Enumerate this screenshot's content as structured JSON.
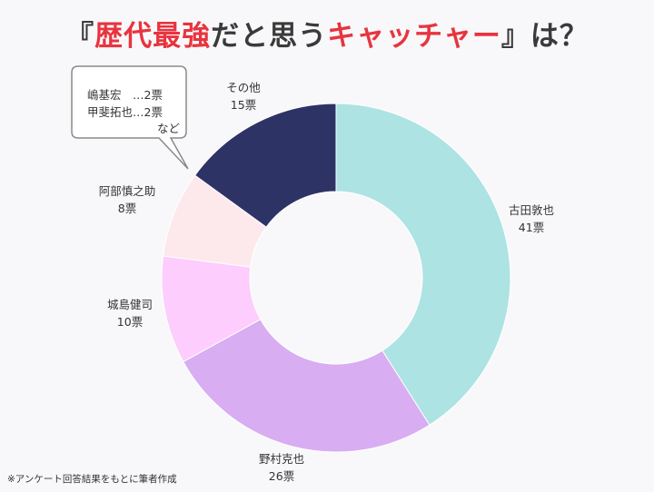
{
  "title": {
    "pre": "『",
    "part1": "歴代最強",
    "mid": "だと思う",
    "part2": "キャッチャー",
    "post": "』は？"
  },
  "chart_data": {
    "type": "pie",
    "style": "donut",
    "unit": "票",
    "slices": [
      {
        "label": "古田敦也",
        "value": 41,
        "value_text": "41票",
        "color": "#ade3e2"
      },
      {
        "label": "野村克也",
        "value": 26,
        "value_text": "26票",
        "color": "#d8adf2"
      },
      {
        "label": "城島健司",
        "value": 10,
        "value_text": "10票",
        "color": "#fdcdfd"
      },
      {
        "label": "阿部慎之助",
        "value": 8,
        "value_text": "8票",
        "color": "#fde9ec"
      },
      {
        "label": "その他",
        "value": 15,
        "value_text": "15票",
        "color": "#2e3366"
      }
    ],
    "annotation": {
      "lines": [
        "嶋基宏　…2票",
        "甲斐拓也…2票",
        "など"
      ]
    }
  },
  "footnote": "※アンケート回答結果をもとに筆者作成"
}
